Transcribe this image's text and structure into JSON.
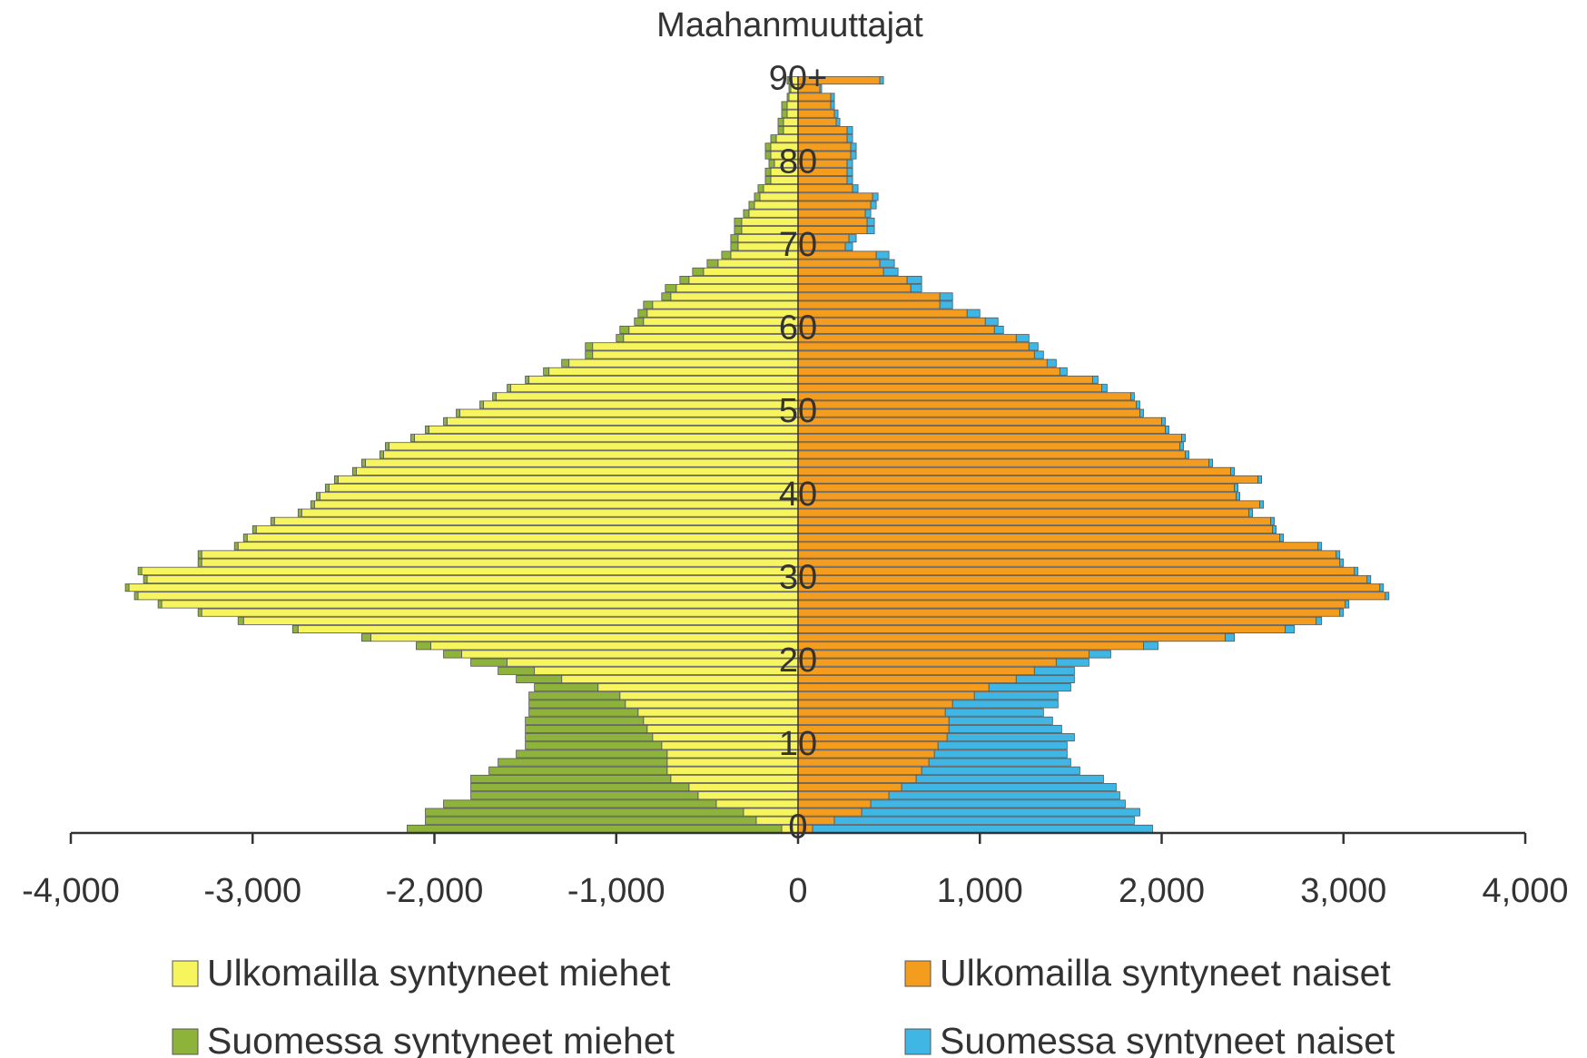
{
  "chart_data": {
    "type": "bar",
    "orientation": "horizontal",
    "stacked": true,
    "title": "Maahanmuuttajat",
    "categories": [
      "0",
      null,
      null,
      null,
      null,
      null,
      null,
      null,
      null,
      null,
      "10",
      null,
      null,
      null,
      null,
      null,
      null,
      null,
      null,
      null,
      "20",
      null,
      null,
      null,
      null,
      null,
      null,
      null,
      null,
      null,
      "30",
      null,
      null,
      null,
      null,
      null,
      null,
      null,
      null,
      null,
      "40",
      null,
      null,
      null,
      null,
      null,
      null,
      null,
      null,
      null,
      "50",
      null,
      null,
      null,
      null,
      null,
      null,
      null,
      null,
      null,
      "60",
      null,
      null,
      null,
      null,
      null,
      null,
      null,
      null,
      null,
      "70",
      null,
      null,
      null,
      null,
      null,
      null,
      null,
      null,
      null,
      "80",
      null,
      null,
      null,
      null,
      null,
      null,
      null,
      null,
      null,
      "90+"
    ],
    "series": [
      {
        "name": "Ulkomailla syntyneet miehet",
        "color": "#f7f55e",
        "values": [
          -90,
          -230,
          -300,
          -450,
          -550,
          -600,
          -700,
          -720,
          -720,
          -720,
          -750,
          -800,
          -830,
          -850,
          -880,
          -950,
          -980,
          -1100,
          -1300,
          -1450,
          -1600,
          -1850,
          -2020,
          -2350,
          -2750,
          -3050,
          -3280,
          -3500,
          -3630,
          -3680,
          -3580,
          -3610,
          -3280,
          -3280,
          -3080,
          -3030,
          -2980,
          -2880,
          -2730,
          -2660,
          -2630,
          -2580,
          -2530,
          -2430,
          -2380,
          -2280,
          -2250,
          -2110,
          -2030,
          -1930,
          -1860,
          -1730,
          -1660,
          -1580,
          -1480,
          -1370,
          -1260,
          -1130,
          -1130,
          -960,
          -930,
          -850,
          -830,
          -800,
          -700,
          -670,
          -600,
          -520,
          -440,
          -370,
          -330,
          -330,
          -310,
          -310,
          -270,
          -240,
          -210,
          -190,
          -150,
          -150,
          -130,
          -150,
          -150,
          -120,
          -80,
          -80,
          -60,
          -60,
          -50,
          -40,
          -50
        ]
      },
      {
        "name": "Suomessa syntyneet miehet",
        "color": "#8db33a",
        "values": [
          -2060,
          -1820,
          -1750,
          -1500,
          -1250,
          -1200,
          -1100,
          -980,
          -930,
          -830,
          -750,
          -700,
          -670,
          -650,
          -600,
          -530,
          -500,
          -350,
          -250,
          -200,
          -200,
          -100,
          -80,
          -50,
          -30,
          -30,
          -20,
          -20,
          -20,
          -20,
          -20,
          -20,
          -20,
          -20,
          -20,
          -20,
          -20,
          -20,
          -20,
          -20,
          -20,
          -20,
          -20,
          -20,
          -20,
          -20,
          -20,
          -20,
          -20,
          -20,
          -20,
          -20,
          -20,
          -20,
          -20,
          -30,
          -40,
          -40,
          -40,
          -40,
          -50,
          -50,
          -50,
          -50,
          -50,
          -60,
          -50,
          -60,
          -60,
          -50,
          -40,
          -40,
          -40,
          -40,
          -30,
          -30,
          -30,
          -30,
          -30,
          -30,
          -30,
          -30,
          -30,
          -30,
          -30,
          -30,
          -30,
          -30,
          -10,
          -10,
          -10
        ]
      },
      {
        "name": "Ulkomailla syntyneet naiset",
        "color": "#f39c1e",
        "values": [
          80,
          200,
          350,
          400,
          500,
          570,
          650,
          680,
          720,
          750,
          770,
          820,
          830,
          830,
          810,
          850,
          970,
          1050,
          1200,
          1300,
          1420,
          1600,
          1900,
          2350,
          2680,
          2850,
          2980,
          3010,
          3230,
          3200,
          3130,
          3060,
          2980,
          2960,
          2860,
          2650,
          2610,
          2600,
          2480,
          2540,
          2410,
          2400,
          2530,
          2380,
          2260,
          2130,
          2100,
          2110,
          2020,
          2000,
          1880,
          1860,
          1830,
          1670,
          1620,
          1440,
          1370,
          1300,
          1270,
          1200,
          1080,
          1030,
          930,
          780,
          780,
          620,
          600,
          470,
          450,
          430,
          260,
          280,
          380,
          380,
          370,
          400,
          410,
          300,
          270,
          270,
          270,
          290,
          290,
          270,
          270,
          210,
          200,
          180,
          180,
          120,
          450
        ]
      },
      {
        "name": "Suomessa syntyneet naiset",
        "color": "#3fb6e4",
        "values": [
          1870,
          1650,
          1530,
          1400,
          1270,
          1180,
          1030,
          870,
          780,
          730,
          710,
          700,
          620,
          570,
          540,
          580,
          460,
          450,
          320,
          220,
          180,
          120,
          80,
          50,
          50,
          30,
          20,
          20,
          20,
          20,
          20,
          20,
          20,
          20,
          20,
          20,
          20,
          20,
          20,
          20,
          20,
          20,
          20,
          20,
          20,
          20,
          20,
          20,
          20,
          20,
          20,
          20,
          20,
          30,
          30,
          40,
          50,
          50,
          50,
          70,
          50,
          70,
          70,
          70,
          70,
          60,
          80,
          80,
          80,
          70,
          40,
          40,
          40,
          40,
          30,
          30,
          30,
          30,
          30,
          30,
          30,
          30,
          30,
          30,
          30,
          20,
          20,
          20,
          20,
          10,
          20
        ]
      }
    ],
    "xlim": [
      -4000,
      4000
    ],
    "xticks": [
      {
        "value": -4000,
        "label": "-4,000"
      },
      {
        "value": -3000,
        "label": "-3,000"
      },
      {
        "value": -2000,
        "label": "-2,000"
      },
      {
        "value": -1000,
        "label": "-1,000"
      },
      0,
      {
        "value": 1000,
        "label": "1,000"
      },
      {
        "value": 2000,
        "label": "2,000"
      },
      {
        "value": 3000,
        "label": "3,000"
      },
      {
        "value": 4000,
        "label": "4,000"
      }
    ]
  }
}
